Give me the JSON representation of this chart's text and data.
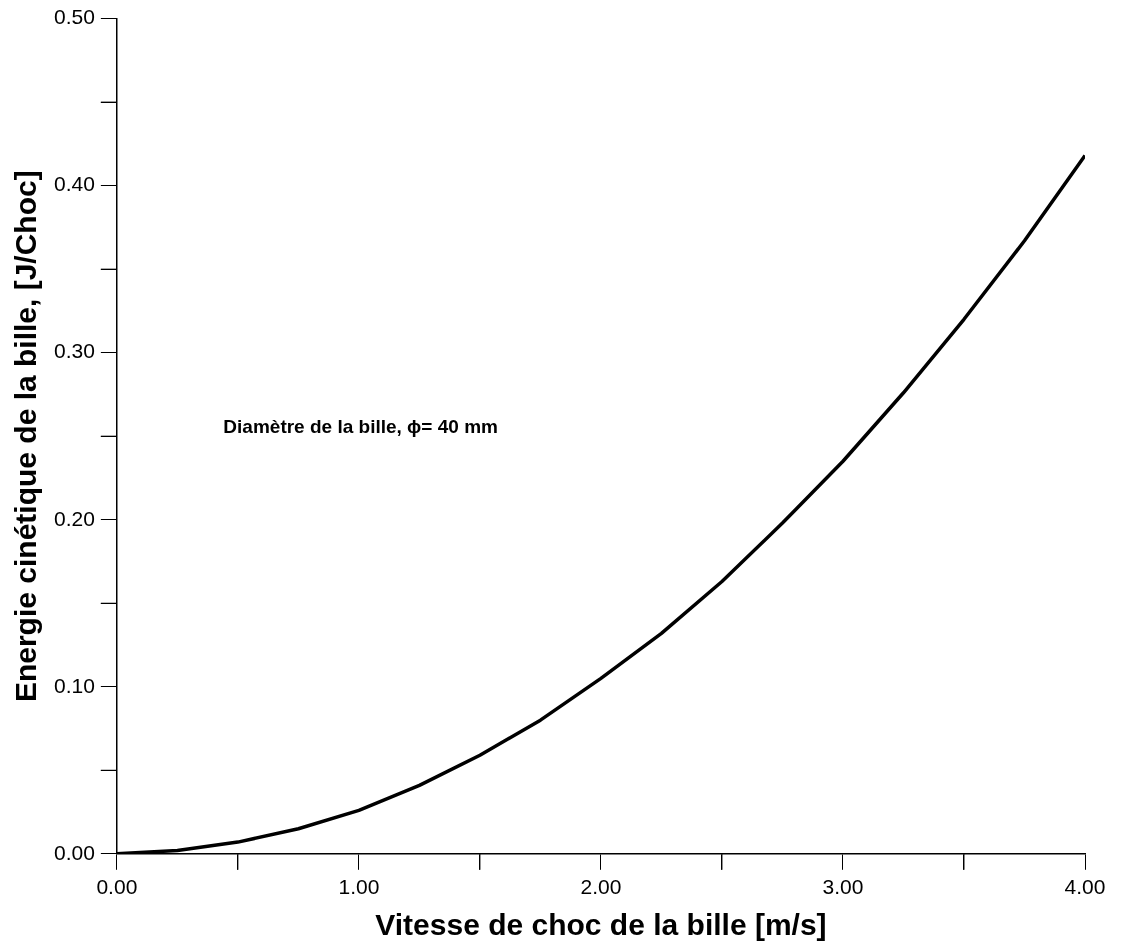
{
  "chart_data": {
    "type": "line",
    "xlabel": "Vitesse de choc de la bille [m/s]",
    "ylabel": "Energie cinétique de la bille, [J/Choc]",
    "annotations": [
      "Diamètre de la bille, ϕ= 40 mm"
    ],
    "x": [
      0,
      0.25,
      0.5,
      0.75,
      1,
      1.25,
      1.5,
      1.75,
      2,
      2.25,
      2.5,
      2.75,
      3,
      3.25,
      3.5,
      3.75,
      4
    ],
    "series": [
      {
        "color": "#000000",
        "values": [
          0,
          0.002,
          0.007,
          0.015,
          0.026,
          0.041,
          0.059,
          0.08,
          0.105,
          0.132,
          0.163,
          0.198,
          0.235,
          0.276,
          0.32,
          0.367,
          0.418
        ]
      }
    ],
    "xlim": [
      0,
      4
    ],
    "ylim": [
      0,
      0.5
    ],
    "xticks": [
      {
        "value": 0,
        "label": "0.00"
      },
      {
        "value": 0.5,
        "label": null
      },
      {
        "value": 1,
        "label": "1.00"
      },
      {
        "value": 1.5,
        "label": null
      },
      {
        "value": 2,
        "label": "2.00"
      },
      {
        "value": 2.5,
        "label": null
      },
      {
        "value": 3,
        "label": "3.00"
      },
      {
        "value": 3.5,
        "label": null
      },
      {
        "value": 4,
        "label": "4.00"
      }
    ],
    "yticks": [
      {
        "value": 0,
        "label": "0.00"
      },
      {
        "value": 0.05,
        "label": null
      },
      {
        "value": 0.1,
        "label": "0.10"
      },
      {
        "value": 0.15,
        "label": null
      },
      {
        "value": 0.2,
        "label": "0.20"
      },
      {
        "value": 0.25,
        "label": null
      },
      {
        "value": 0.3,
        "label": "0.30"
      },
      {
        "value": 0.35,
        "label": null
      },
      {
        "value": 0.4,
        "label": "0.40"
      },
      {
        "value": 0.45,
        "label": null
      },
      {
        "value": 0.5,
        "label": "0.50"
      }
    ],
    "grid": false,
    "legend": false,
    "marker": "none",
    "line_style": "solid"
  }
}
